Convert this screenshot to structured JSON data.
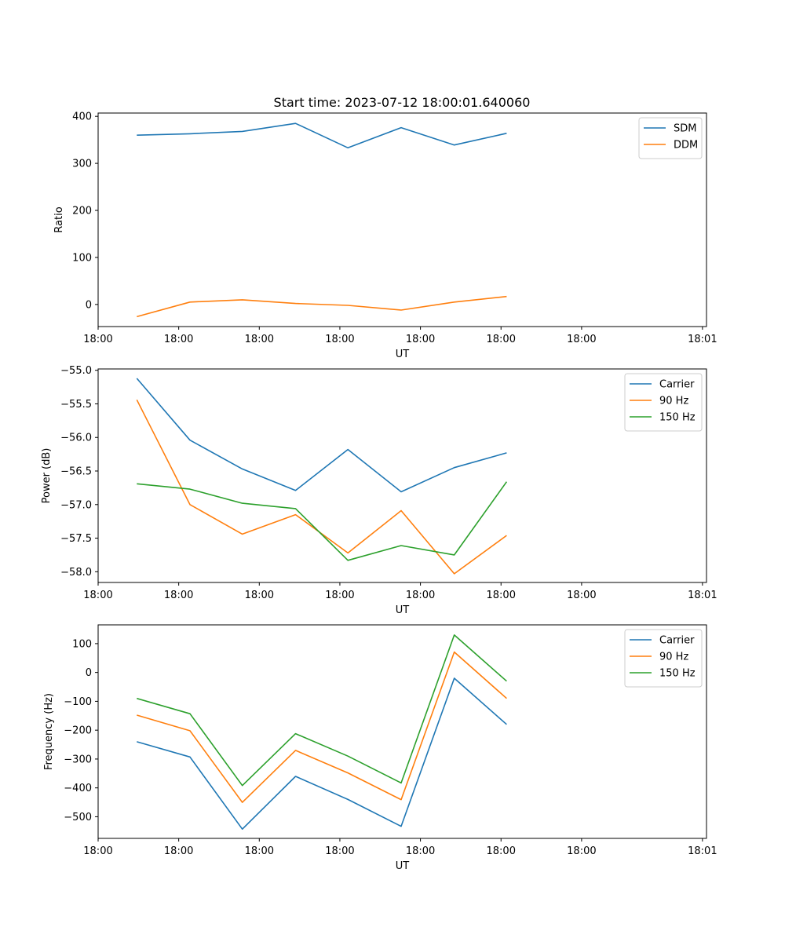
{
  "figure_title": "Start time: 2023-07-12 18:00:01.640060",
  "chart_data": [
    {
      "type": "line",
      "ylabel": "Ratio",
      "xlabel": "UT",
      "xlim": [
        0,
        7.55
      ],
      "x_ticks": [
        0,
        1,
        2,
        3,
        4,
        5,
        6,
        7.5
      ],
      "x_tick_labels": [
        "18:00",
        "18:00",
        "18:00",
        "18:00",
        "18:00",
        "18:00",
        "18:00",
        "18:01"
      ],
      "ylim": [
        -47,
        407
      ],
      "y_ticks": [
        0,
        100,
        200,
        300,
        400
      ],
      "y_tick_labels": [
        "0",
        "100",
        "200",
        "300",
        "400"
      ],
      "x": [
        0.48,
        1.14,
        1.79,
        2.45,
        3.1,
        3.76,
        4.42,
        5.07
      ],
      "legend_position": "top-right",
      "series": [
        {
          "name": "SDM",
          "color": "#1f77b4",
          "values": [
            360,
            363,
            368,
            385,
            333,
            376,
            339,
            364
          ]
        },
        {
          "name": "DDM",
          "color": "#ff7f0e",
          "values": [
            -26,
            5,
            10,
            2,
            -2,
            -12,
            5,
            17
          ]
        }
      ]
    },
    {
      "type": "line",
      "ylabel": "Power (dB)",
      "xlabel": "UT",
      "xlim": [
        0,
        7.55
      ],
      "x_ticks": [
        0,
        1,
        2,
        3,
        4,
        5,
        6,
        7.5
      ],
      "x_tick_labels": [
        "18:00",
        "18:00",
        "18:00",
        "18:00",
        "18:00",
        "18:00",
        "18:00",
        "18:01"
      ],
      "ylim": [
        -58.16,
        -54.98
      ],
      "y_ticks": [
        -55.0,
        -55.5,
        -56.0,
        -56.5,
        -57.0,
        -57.5,
        -58.0
      ],
      "y_tick_labels": [
        "−55.0",
        "−55.5",
        "−56.0",
        "−56.5",
        "−57.0",
        "−57.5",
        "−58.0"
      ],
      "x": [
        0.48,
        1.14,
        1.79,
        2.45,
        3.1,
        3.76,
        4.42,
        5.07
      ],
      "legend_position": "top-right",
      "series": [
        {
          "name": "Carrier",
          "color": "#1f77b4",
          "values": [
            -55.12,
            -56.04,
            -56.47,
            -56.79,
            -56.18,
            -56.81,
            -56.45,
            -56.23
          ]
        },
        {
          "name": "90 Hz",
          "color": "#ff7f0e",
          "values": [
            -55.44,
            -57.0,
            -57.44,
            -57.15,
            -57.72,
            -57.09,
            -58.03,
            -57.46
          ]
        },
        {
          "name": "150 Hz",
          "color": "#2ca02c",
          "values": [
            -56.69,
            -56.77,
            -56.98,
            -57.06,
            -57.83,
            -57.61,
            -57.75,
            -56.66
          ]
        }
      ]
    },
    {
      "type": "line",
      "ylabel": "Frequency (Hz)",
      "xlabel": "UT",
      "xlim": [
        0,
        7.55
      ],
      "x_ticks": [
        0,
        1,
        2,
        3,
        4,
        5,
        6,
        7.5
      ],
      "x_tick_labels": [
        "18:00",
        "18:00",
        "18:00",
        "18:00",
        "18:00",
        "18:00",
        "18:00",
        "18:01"
      ],
      "ylim": [
        -575,
        165
      ],
      "y_ticks": [
        100,
        0,
        -100,
        -200,
        -300,
        -400,
        -500
      ],
      "y_tick_labels": [
        "100",
        "0",
        "−100",
        "−200",
        "−300",
        "−400",
        "−500"
      ],
      "x": [
        0.48,
        1.14,
        1.79,
        2.45,
        3.1,
        3.76,
        4.42,
        5.07
      ],
      "legend_position": "top-right",
      "series": [
        {
          "name": "Carrier",
          "color": "#1f77b4",
          "values": [
            -240,
            -293,
            -543,
            -360,
            -440,
            -533,
            -20,
            -180
          ]
        },
        {
          "name": "90 Hz",
          "color": "#ff7f0e",
          "values": [
            -148,
            -202,
            -450,
            -270,
            -348,
            -441,
            71,
            -90
          ]
        },
        {
          "name": "150 Hz",
          "color": "#2ca02c",
          "values": [
            -90,
            -143,
            -392,
            -212,
            -290,
            -383,
            130,
            -30
          ]
        }
      ]
    }
  ]
}
